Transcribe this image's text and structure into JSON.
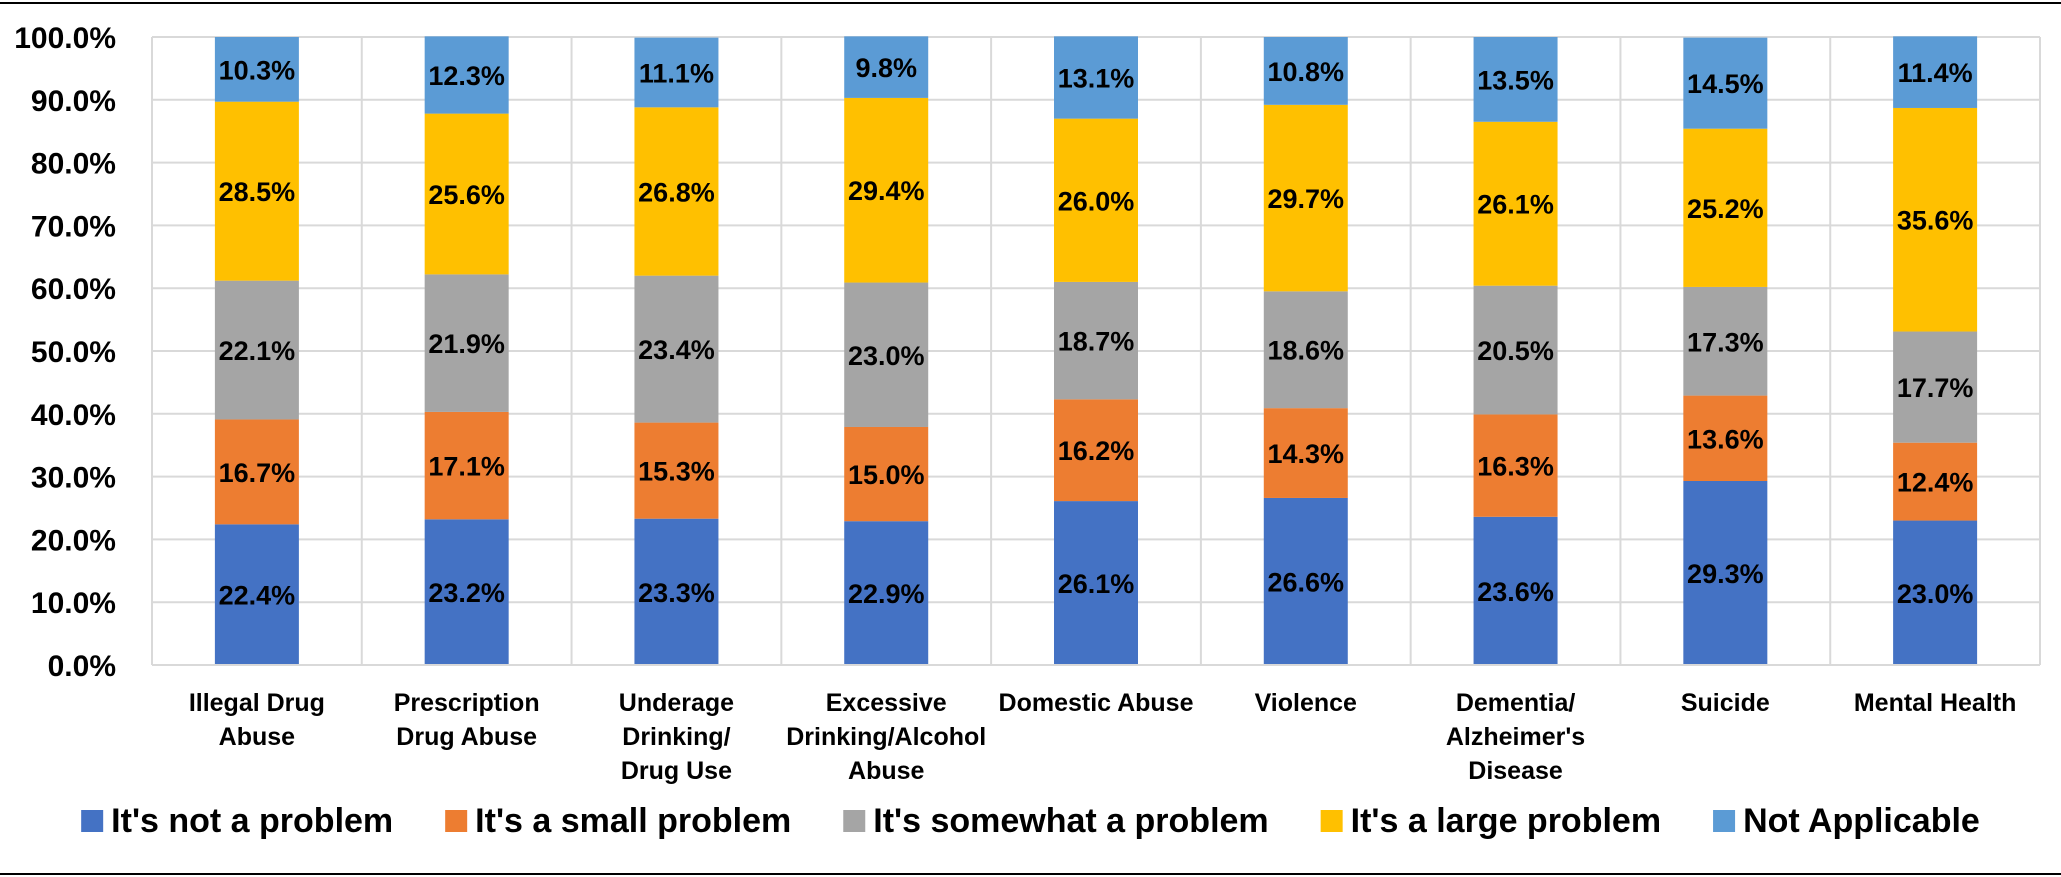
{
  "chart_data": {
    "type": "bar",
    "stacked": true,
    "categories": [
      [
        "Illegal Drug",
        "Abuse"
      ],
      [
        "Prescription",
        "Drug Abuse"
      ],
      [
        "Underage",
        "Drinking/",
        "Drug Use"
      ],
      [
        "Excessive",
        "Drinking/Alcohol",
        "Abuse"
      ],
      [
        "Domestic Abuse"
      ],
      [
        "Violence"
      ],
      [
        "Dementia/",
        "Alzheimer's",
        "Disease"
      ],
      [
        "Suicide"
      ],
      [
        "Mental Health"
      ]
    ],
    "series": [
      {
        "name": "It's not a problem",
        "color": "#4472C4",
        "values": [
          22.4,
          23.2,
          23.3,
          22.9,
          26.1,
          26.6,
          23.6,
          29.3,
          23.0
        ]
      },
      {
        "name": "It's a small problem",
        "color": "#ED7D31",
        "values": [
          16.7,
          17.1,
          15.3,
          15.0,
          16.2,
          14.3,
          16.3,
          13.6,
          12.4
        ]
      },
      {
        "name": "It's somewhat a problem",
        "color": "#A5A5A5",
        "values": [
          22.1,
          21.9,
          23.4,
          23.0,
          18.7,
          18.6,
          20.5,
          17.3,
          17.7
        ]
      },
      {
        "name": "It's a large problem",
        "color": "#FFC000",
        "values": [
          28.5,
          25.6,
          26.8,
          29.4,
          26.0,
          29.7,
          26.1,
          25.2,
          35.6
        ]
      },
      {
        "name": "Not Applicable",
        "color": "#5B9BD5",
        "values": [
          10.3,
          12.3,
          11.1,
          9.8,
          13.1,
          10.8,
          13.5,
          14.5,
          11.4
        ]
      }
    ],
    "y_ticks": [
      "0.0%",
      "10.0%",
      "20.0%",
      "30.0%",
      "40.0%",
      "50.0%",
      "60.0%",
      "70.0%",
      "80.0%",
      "90.0%",
      "100.0%"
    ],
    "ylim": [
      0,
      100
    ],
    "grid": true,
    "legend_position": "bottom",
    "value_format": "percent-1dp"
  }
}
